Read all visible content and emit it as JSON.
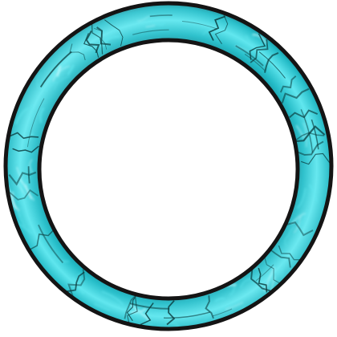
{
  "image": {
    "subject": "ring-frame",
    "colors": {
      "background": "#ffffff",
      "ring_base": "#1fb8c4",
      "ring_light": "#5fe6ee",
      "ring_highlight": "#c8fbff",
      "ring_dark": "#0f6d78",
      "crack_lines": "#0a3a3c",
      "outline": "#141414",
      "inner_fill": "#ffffff"
    }
  }
}
